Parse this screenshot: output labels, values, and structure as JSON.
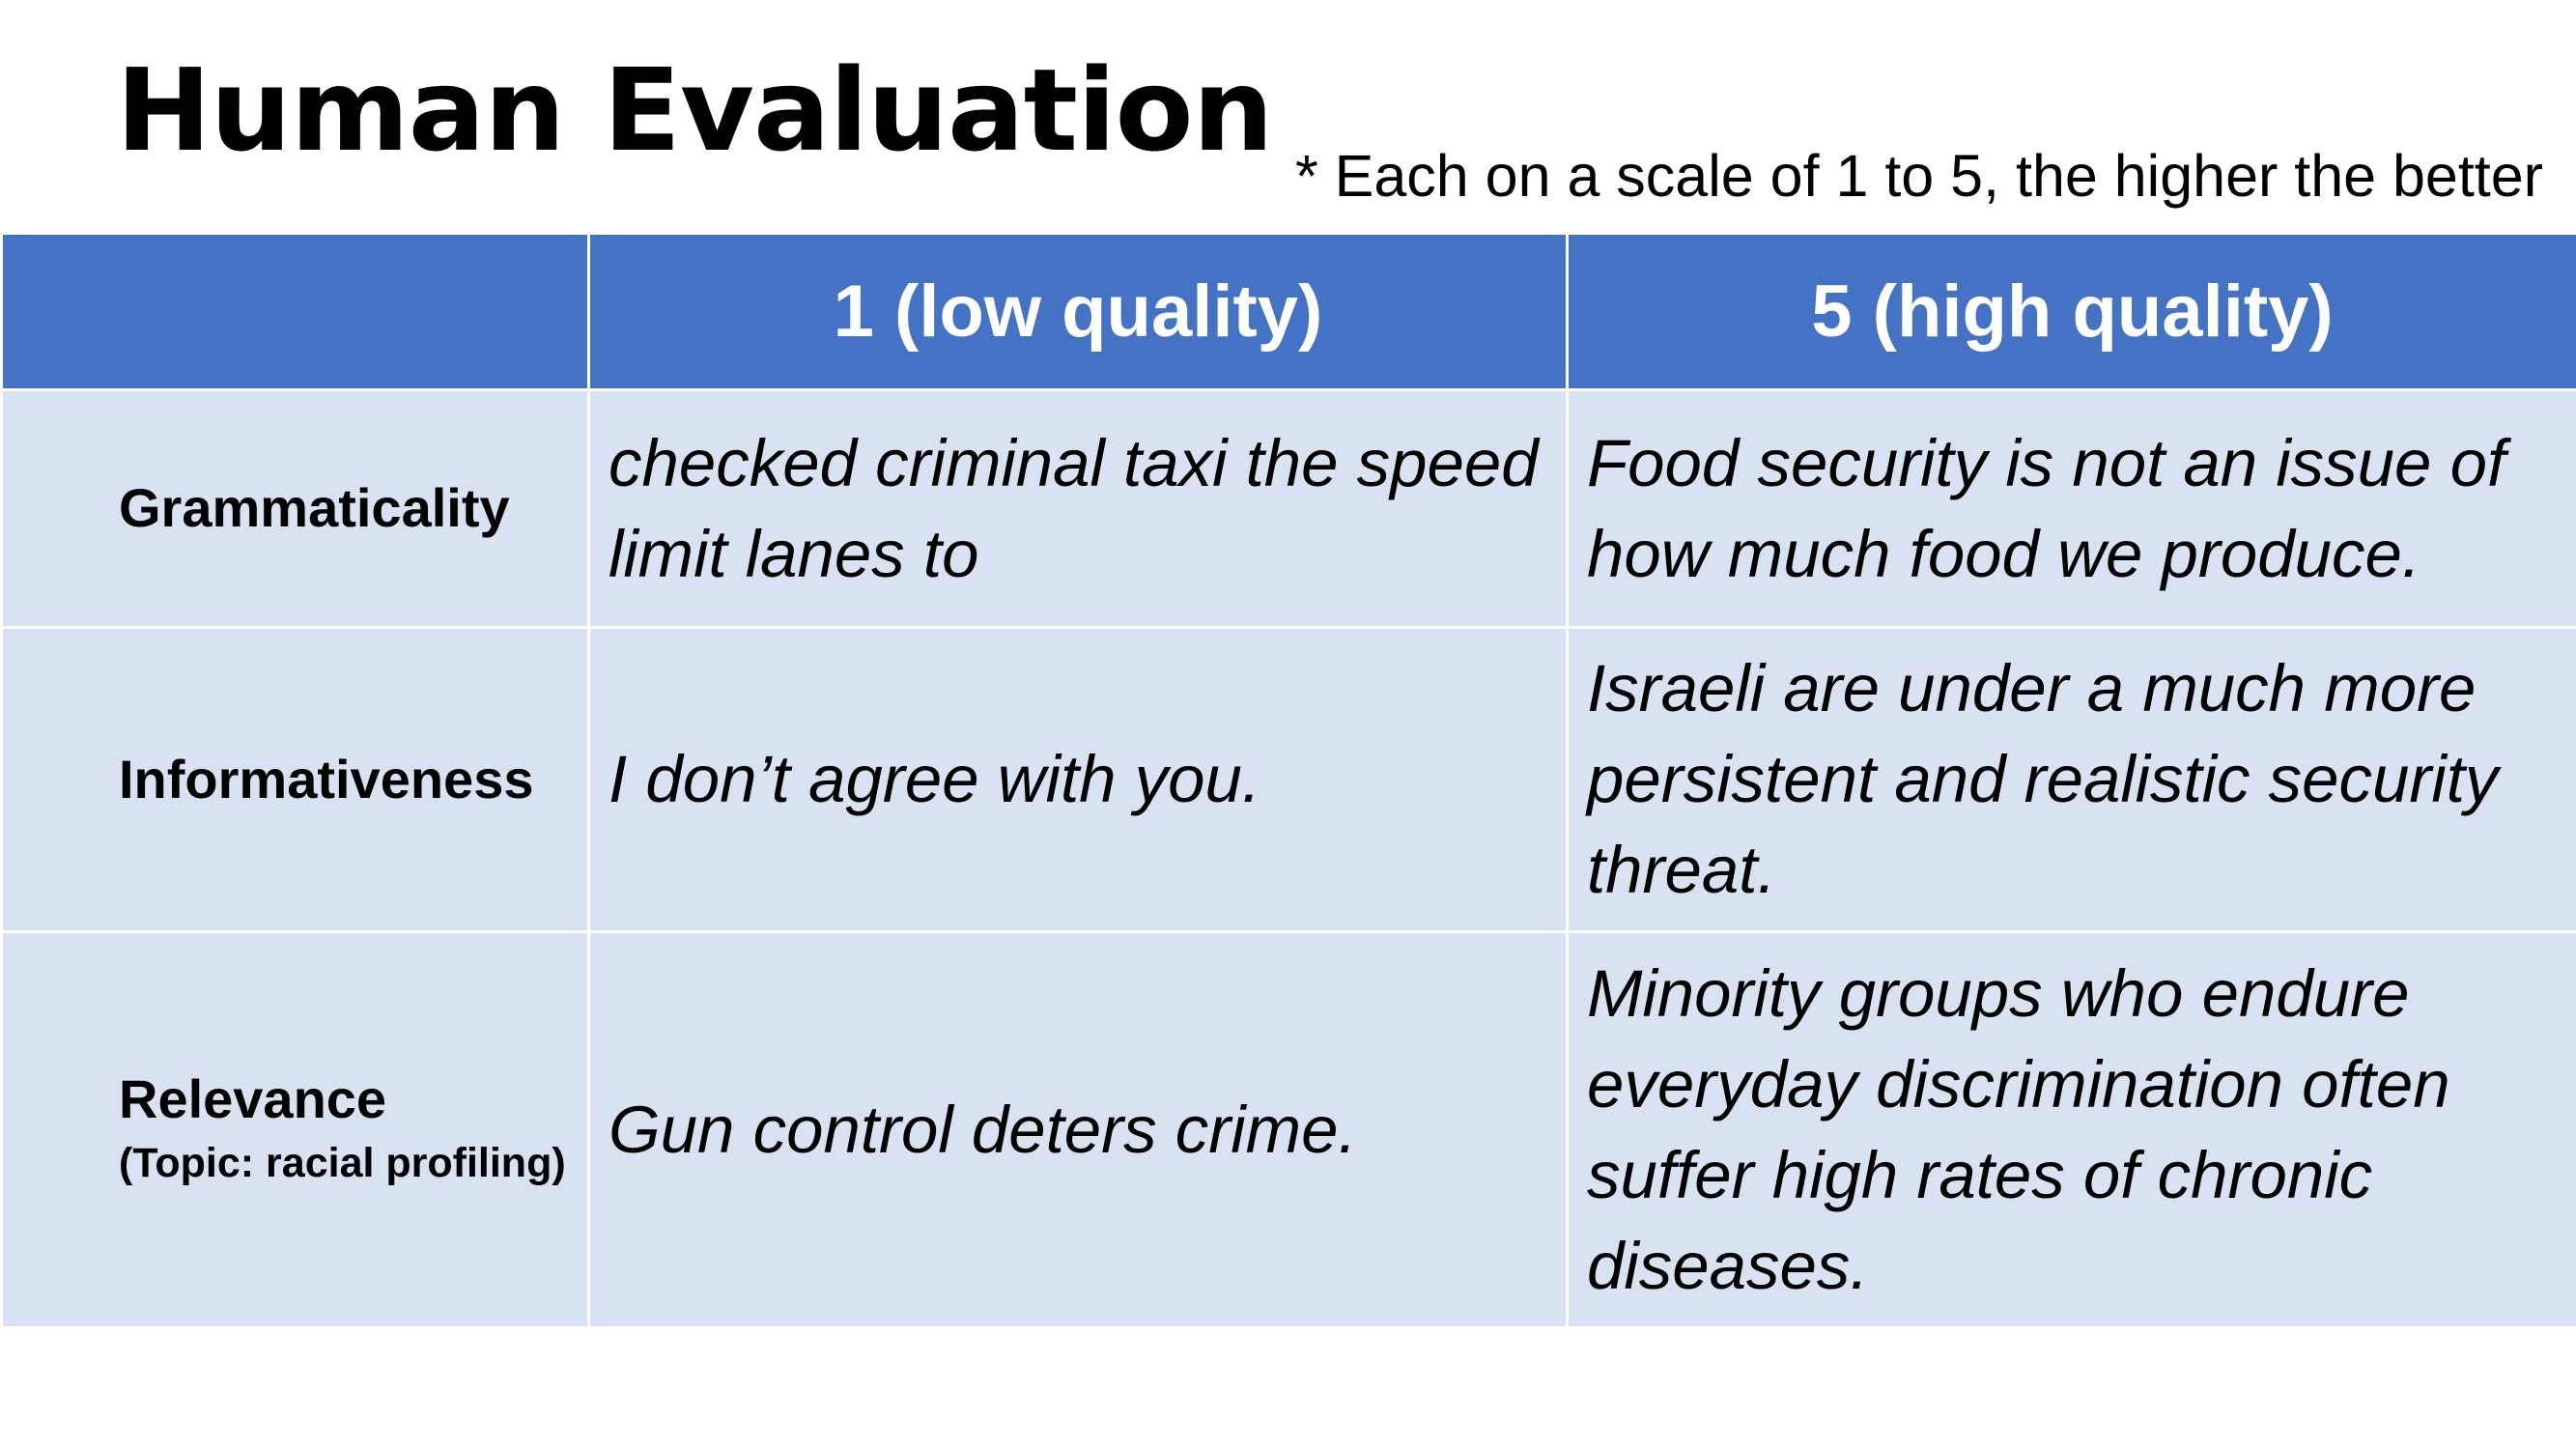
{
  "title": "Human Evaluation",
  "note": "* Each on a scale of 1 to 5, the higher the better",
  "table": {
    "header": {
      "corner": "",
      "low": "1 (low quality)",
      "high": "5 (high quality)"
    },
    "rows": [
      {
        "criterion": "Grammaticality",
        "criterion_note": "",
        "low_example": "checked criminal taxi the speed limit lanes to",
        "high_example": "Food security is not an issue of how much food we produce."
      },
      {
        "criterion": "Informativeness",
        "criterion_note": "",
        "low_example": "I don’t agree with you.",
        "high_example": "Israeli are under a much more persistent and realistic security threat."
      },
      {
        "criterion": "Relevance",
        "criterion_note": "(Topic: racial profiling)",
        "low_example": "Gun control deters crime.",
        "high_example": "Minority groups who endure everyday discrimination often suffer high rates of chronic diseases."
      }
    ]
  },
  "colors": {
    "header_background": "#4472c4",
    "body_background": "#d9e2f3",
    "header_text": "#ffffff"
  }
}
